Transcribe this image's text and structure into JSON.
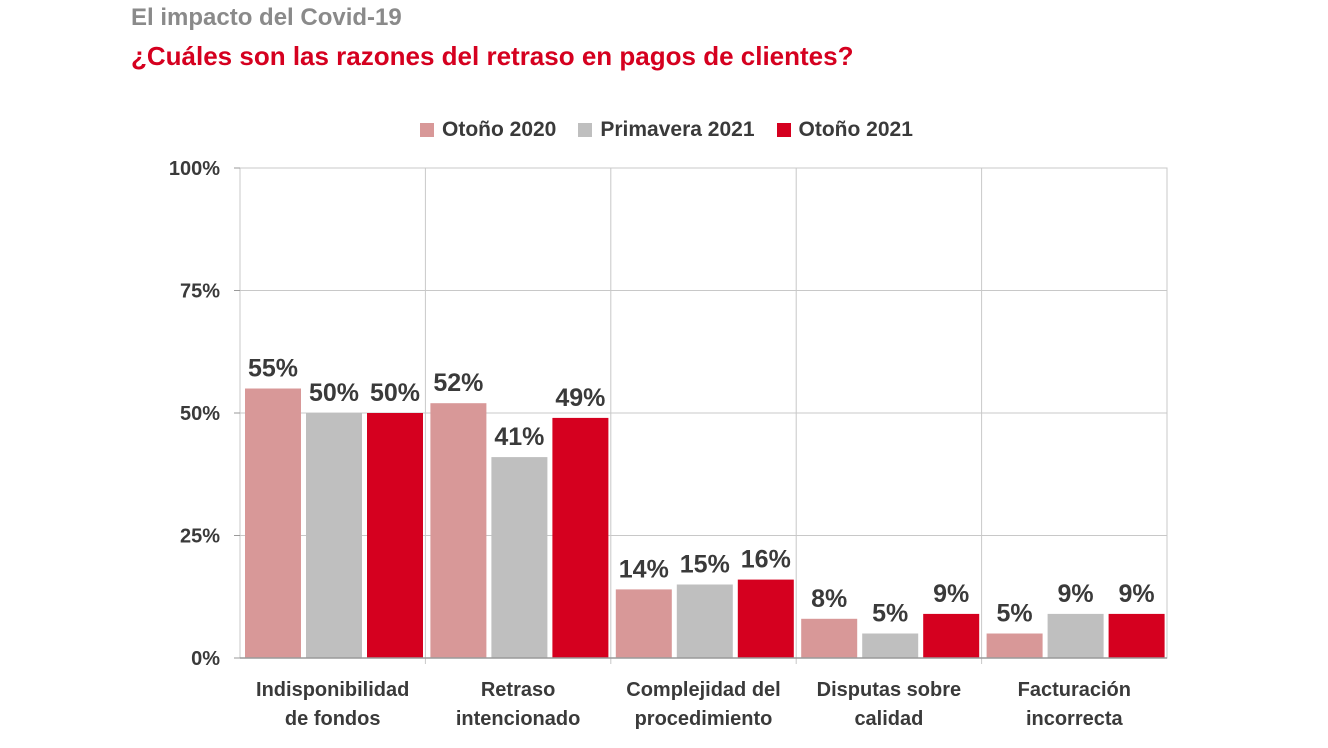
{
  "header": {
    "supertitle": "El impacto del Covid-19",
    "title": "¿Cuáles son las razones del retraso en pagos de clientes?"
  },
  "colors": {
    "Otoño 2020": "#d89898",
    "Primavera 2021": "#bfbfbf",
    "Otoño 2021": "#d5001f",
    "grid": "#c8c8c8",
    "axis": "#9a9a9a",
    "text": "#3a3a3a"
  },
  "chart_data": {
    "type": "bar",
    "categories": [
      [
        "Indisponibilidad",
        "de fondos"
      ],
      [
        "Retraso",
        "intencionado"
      ],
      [
        "Complejidad del",
        "procedimiento"
      ],
      [
        "Disputas sobre",
        "calidad"
      ],
      [
        "Facturación",
        "incorrecta"
      ]
    ],
    "series": [
      {
        "name": "Otoño 2020",
        "values": [
          55,
          52,
          14,
          8,
          5
        ],
        "labels": [
          "55%",
          "52%",
          "14%",
          "8%",
          "5%"
        ]
      },
      {
        "name": "Primavera 2021",
        "values": [
          50,
          41,
          15,
          5,
          9
        ],
        "labels": [
          "50%",
          "41%",
          "15%",
          "5%",
          "9%"
        ]
      },
      {
        "name": "Otoño 2021",
        "values": [
          50,
          49,
          16,
          9,
          9
        ],
        "labels": [
          "50%",
          "49%",
          "16%",
          "9%",
          "9%"
        ]
      }
    ],
    "ylim": [
      0,
      100
    ],
    "yticks": [
      0,
      25,
      50,
      75,
      100
    ],
    "ytick_labels": [
      "0%",
      "25%",
      "50%",
      "75%",
      "100%"
    ],
    "grid": true,
    "legend": "top-center"
  }
}
